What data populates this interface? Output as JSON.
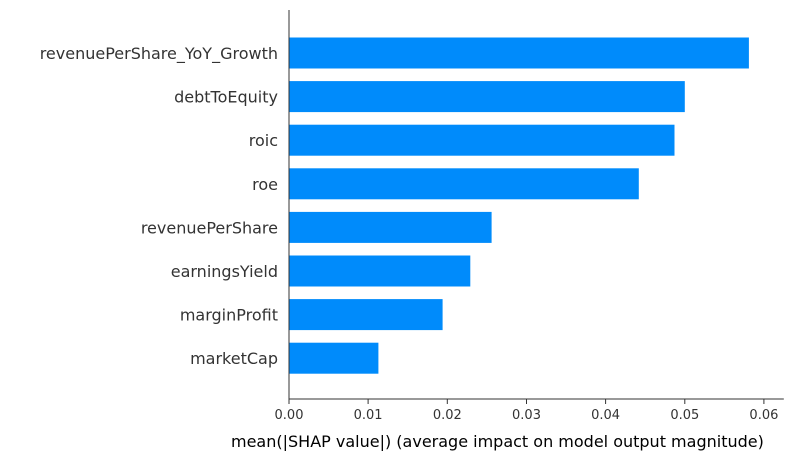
{
  "chart_data": {
    "type": "bar",
    "orientation": "horizontal",
    "categories": [
      "revenuePerShare_YoY_Growth",
      "debtToEquity",
      "roic",
      "roe",
      "revenuePerShare",
      "earningsYield",
      "marginProfit",
      "marketCap"
    ],
    "values": [
      0.0581,
      0.05,
      0.0487,
      0.0442,
      0.0256,
      0.0229,
      0.0194,
      0.0113
    ],
    "xlabel": "mean(|SHAP value|) (average impact on model output magnitude)",
    "ylabel": "",
    "xlim": [
      0,
      0.061
    ],
    "xticks": [
      "0.00",
      "0.01",
      "0.02",
      "0.03",
      "0.04",
      "0.05",
      "0.06"
    ],
    "grid": false,
    "bar_color": "#008bfb"
  }
}
